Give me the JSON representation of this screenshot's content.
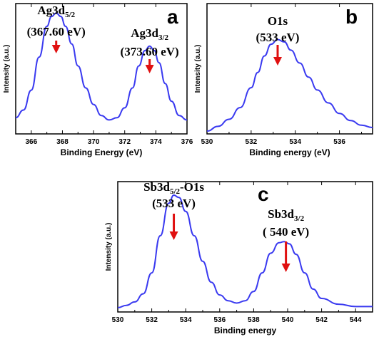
{
  "chart_data": [
    {
      "type": "line",
      "panel_label": "a",
      "xlabel": "Binding Energy (eV)",
      "ylabel": "Intensity (a.u.)",
      "xlim": [
        365,
        376
      ],
      "xticks": [
        "366",
        "368",
        "370",
        "372",
        "374",
        "376"
      ],
      "color": "#3a3af0",
      "x": [
        365,
        365.5,
        366,
        366.5,
        367,
        367.3,
        367.6,
        367.9,
        368.2,
        368.6,
        369,
        369.5,
        370,
        370.5,
        371,
        371.5,
        372,
        372.5,
        372.9,
        373.3,
        373.6,
        373.9,
        374.2,
        374.6,
        375,
        375.5,
        376
      ],
      "y": [
        0.05,
        0.12,
        0.3,
        0.6,
        0.88,
        0.97,
        1.0,
        0.97,
        0.88,
        0.72,
        0.52,
        0.32,
        0.17,
        0.07,
        0.03,
        0.05,
        0.14,
        0.32,
        0.52,
        0.66,
        0.7,
        0.66,
        0.55,
        0.36,
        0.2,
        0.07,
        0.03
      ],
      "annotations": [
        {
          "line1": "Ag3d",
          "sub": "5/2",
          "line2": "(367.60 eV)",
          "x": 367.6
        },
        {
          "line1": "Ag3d",
          "sub": "3/2",
          "line2": "(373.60 eV)",
          "x": 373.6
        }
      ]
    },
    {
      "type": "line",
      "panel_label": "b",
      "xlabel": "Binding energy (eV)",
      "ylabel": "Intensity (a.u.)",
      "xlim": [
        530,
        537.5
      ],
      "xticks": [
        "530",
        "532",
        "534",
        "536"
      ],
      "color": "#3a3af0",
      "x": [
        530,
        530.5,
        531,
        531.5,
        532,
        532.3,
        532.6,
        532.9,
        533.2,
        533.5,
        533.8,
        534.2,
        534.6,
        535,
        535.5,
        536,
        536.5,
        537,
        537.5
      ],
      "y": [
        0.0,
        0.04,
        0.1,
        0.2,
        0.37,
        0.5,
        0.64,
        0.74,
        0.78,
        0.76,
        0.69,
        0.58,
        0.46,
        0.35,
        0.24,
        0.15,
        0.09,
        0.05,
        0.03
      ],
      "annotations": [
        {
          "line1": "O1s",
          "sub": "",
          "line2": "(533 eV)",
          "x": 533.2
        }
      ]
    },
    {
      "type": "line",
      "panel_label": "c",
      "xlabel": "Binding energy",
      "ylabel": "Intensity (a.u.)",
      "xlim": [
        530,
        545
      ],
      "xticks": [
        "530",
        "532",
        "534",
        "536",
        "538",
        "540",
        "542",
        "544"
      ],
      "color": "#3a3af0",
      "x": [
        530,
        530.5,
        531,
        531.5,
        532,
        532.5,
        533,
        533.3,
        533.6,
        534,
        534.5,
        535,
        535.5,
        536,
        536.5,
        537,
        537.5,
        538,
        538.5,
        539,
        539.5,
        539.8,
        540.1,
        540.5,
        541,
        541.5,
        542,
        543,
        544,
        545
      ],
      "y": [
        0.0,
        0.02,
        0.05,
        0.12,
        0.3,
        0.62,
        0.9,
        0.97,
        0.95,
        0.83,
        0.62,
        0.4,
        0.22,
        0.11,
        0.06,
        0.04,
        0.06,
        0.14,
        0.3,
        0.47,
        0.56,
        0.57,
        0.55,
        0.46,
        0.3,
        0.16,
        0.08,
        0.03,
        0.01,
        0.01
      ],
      "annotations": [
        {
          "line1": "Sb3d",
          "sub": "5/2",
          "suffix": "-O1s",
          "line2": "(533 eV)",
          "x": 533.3
        },
        {
          "line1": "Sb3d",
          "sub": "3/2",
          "line2": "( 540 eV)",
          "x": 539.9
        }
      ]
    }
  ]
}
